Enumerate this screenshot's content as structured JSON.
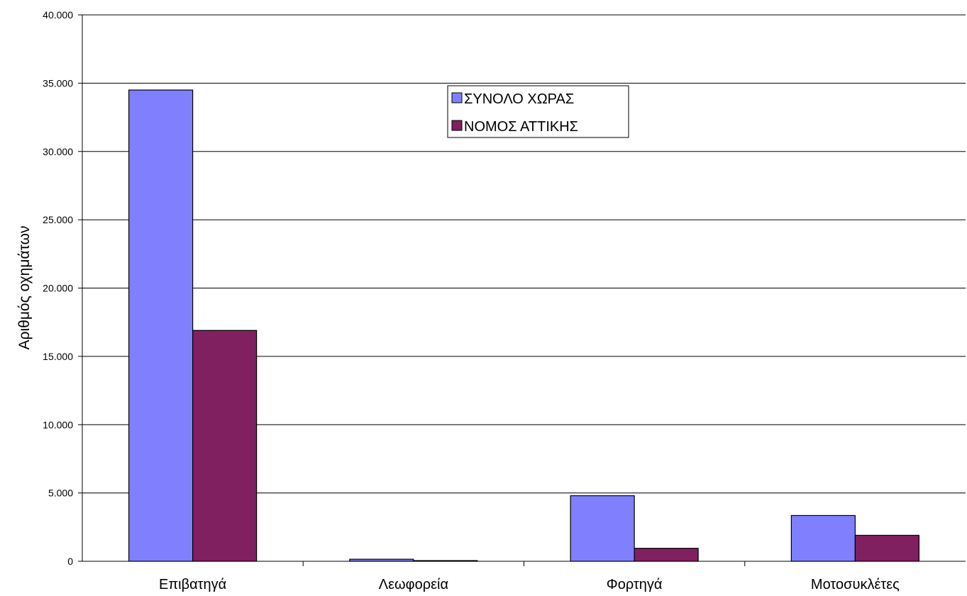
{
  "chart_data": {
    "type": "bar",
    "title": "",
    "xlabel": "",
    "ylabel": "Αριθμός οχημάτων",
    "ylim": [
      0,
      40000
    ],
    "yticks": [
      0,
      5000,
      10000,
      15000,
      20000,
      25000,
      30000,
      35000,
      40000
    ],
    "ytick_labels": [
      "0",
      "5.000",
      "10.000",
      "15.000",
      "20.000",
      "25.000",
      "30.000",
      "35.000",
      "40.000"
    ],
    "categories": [
      "Επιβατηγά",
      "Λεωφορεία",
      "Φορτηγά",
      "Μοτοσυκλέτες"
    ],
    "series": [
      {
        "name": "ΣΥΝΟΛΟ ΧΩΡΑΣ",
        "color": "#8080FF",
        "values": [
          34500,
          150,
          4800,
          3350
        ]
      },
      {
        "name": "ΝΟΜΟΣ ΑΤΤΙΚΗΣ",
        "color": "#802060",
        "values": [
          16900,
          50,
          950,
          1900
        ]
      }
    ],
    "grid": true,
    "legend_position": "top-center"
  }
}
